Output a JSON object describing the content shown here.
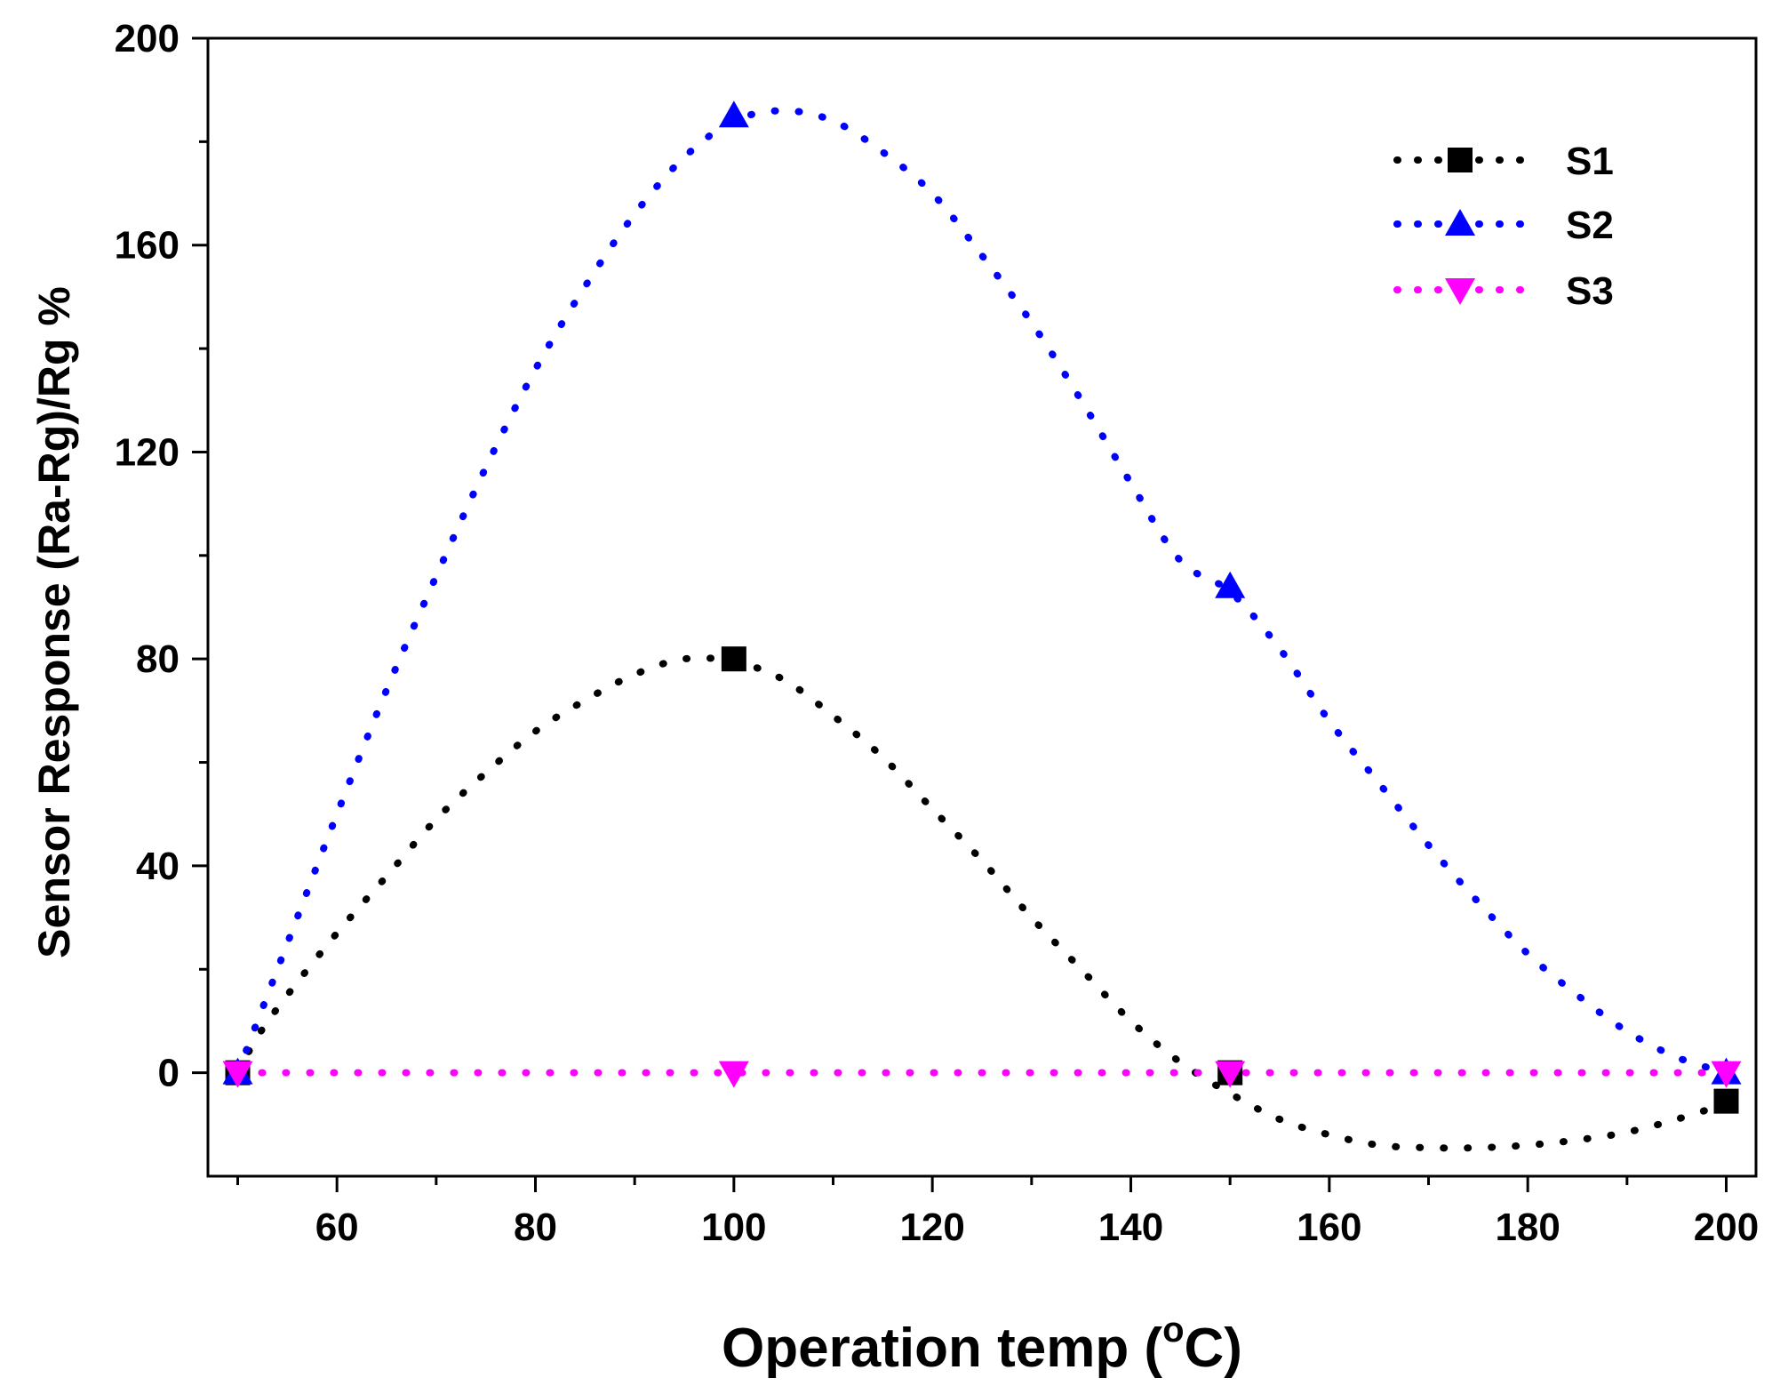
{
  "chart_data": {
    "type": "line",
    "xlabel": "Operation temp (",
    "xlabel_unit_sup": "o",
    "xlabel_unit": "C)",
    "ylabel": "Sensor Response (Ra-Rg)/Rg %",
    "xlim": [
      47,
      203
    ],
    "ylim": [
      -20,
      200
    ],
    "xticks": [
      60,
      80,
      100,
      120,
      140,
      160,
      180,
      200
    ],
    "yticks": [
      0,
      40,
      80,
      120,
      160,
      200
    ],
    "x_minor_step": 10,
    "y_minor_step": 20,
    "x": [
      50,
      100,
      150,
      200
    ],
    "series": [
      {
        "name": "S1",
        "color": "#000000",
        "marker": "square",
        "values": [
          0,
          80,
          0,
          -5.5
        ],
        "fit_curve": [
          [
            50,
            0
          ],
          [
            52,
            7
          ],
          [
            55,
            15
          ],
          [
            60,
            27
          ],
          [
            65,
            38
          ],
          [
            70,
            49
          ],
          [
            75,
            58
          ],
          [
            80,
            66
          ],
          [
            85,
            72
          ],
          [
            90,
            77
          ],
          [
            95,
            80
          ],
          [
            100,
            79.5
          ],
          [
            105,
            76
          ],
          [
            110,
            69
          ],
          [
            115,
            61
          ],
          [
            120,
            51
          ],
          [
            125,
            41
          ],
          [
            130,
            30
          ],
          [
            135,
            20
          ],
          [
            140,
            10
          ],
          [
            145,
            2
          ],
          [
            150,
            -4
          ],
          [
            155,
            -9
          ],
          [
            160,
            -12
          ],
          [
            165,
            -14
          ],
          [
            170,
            -14.5
          ],
          [
            175,
            -14.5
          ],
          [
            180,
            -14
          ],
          [
            185,
            -13
          ],
          [
            190,
            -11.5
          ],
          [
            195,
            -9
          ],
          [
            200,
            -6
          ]
        ]
      },
      {
        "name": "S2",
        "color": "#0000ff",
        "marker": "triangle-up",
        "values": [
          0,
          185,
          94,
          0
        ],
        "fit_curve": [
          [
            50,
            0
          ],
          [
            53,
            15
          ],
          [
            56,
            30
          ],
          [
            60,
            50
          ],
          [
            65,
            74
          ],
          [
            70,
            96
          ],
          [
            75,
            117
          ],
          [
            80,
            136
          ],
          [
            85,
            152
          ],
          [
            90,
            166
          ],
          [
            95,
            177
          ],
          [
            100,
            184
          ],
          [
            105,
            186
          ],
          [
            110,
            184
          ],
          [
            115,
            178
          ],
          [
            120,
            170
          ],
          [
            125,
            158
          ],
          [
            130,
            145
          ],
          [
            135,
            130
          ],
          [
            140,
            114
          ],
          [
            145,
            99
          ],
          [
            150,
            93
          ],
          [
            155,
            82
          ],
          [
            160,
            68
          ],
          [
            165,
            56
          ],
          [
            170,
            44
          ],
          [
            175,
            33
          ],
          [
            180,
            23
          ],
          [
            185,
            15
          ],
          [
            190,
            8
          ],
          [
            195,
            3
          ],
          [
            200,
            0
          ]
        ]
      },
      {
        "name": "S3",
        "color": "#ff00ff",
        "marker": "triangle-down",
        "values": [
          0,
          0,
          0,
          0
        ],
        "fit_curve": [
          [
            50,
            0
          ],
          [
            200,
            0
          ]
        ]
      }
    ],
    "legend_position": "top-right"
  }
}
